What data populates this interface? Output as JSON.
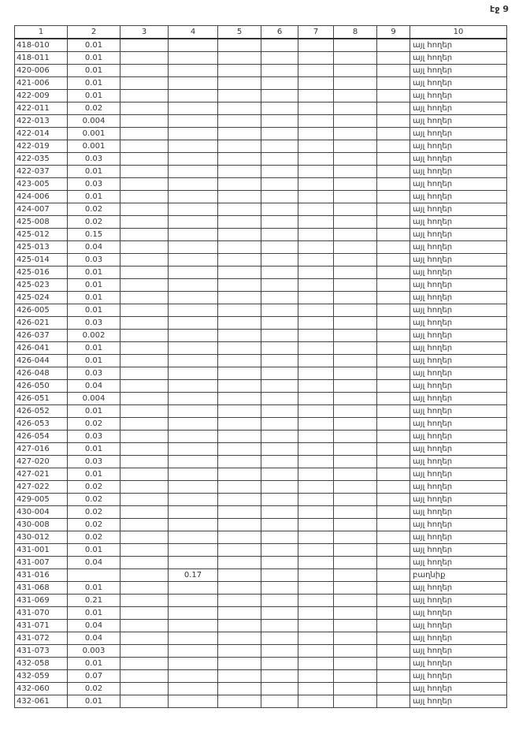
{
  "page_label": "էջ 9",
  "headers": [
    "1",
    "2",
    "3",
    "4",
    "5",
    "6",
    "7",
    "8",
    "9",
    "10"
  ],
  "rows": [
    [
      "418-010",
      "0.01",
      "",
      "",
      "",
      "",
      "",
      "",
      "",
      "այլ հողեր"
    ],
    [
      "418-011",
      "0.01",
      "",
      "",
      "",
      "",
      "",
      "",
      "",
      "այլ հողեր"
    ],
    [
      "420-006",
      "0.01",
      "",
      "",
      "",
      "",
      "",
      "",
      "",
      "այլ հողեր"
    ],
    [
      "421-006",
      "0.01",
      "",
      "",
      "",
      "",
      "",
      "",
      "",
      "այլ հողեր"
    ],
    [
      "422-009",
      "0.01",
      "",
      "",
      "",
      "",
      "",
      "",
      "",
      "այլ հողեր"
    ],
    [
      "422-011",
      "0.02",
      "",
      "",
      "",
      "",
      "",
      "",
      "",
      "այլ հողեր"
    ],
    [
      "422-013",
      "0.004",
      "",
      "",
      "",
      "",
      "",
      "",
      "",
      "այլ հողեր"
    ],
    [
      "422-014",
      "0.001",
      "",
      "",
      "",
      "",
      "",
      "",
      "",
      "այլ հողեր"
    ],
    [
      "422-019",
      "0.001",
      "",
      "",
      "",
      "",
      "",
      "",
      "",
      "այլ հողեր"
    ],
    [
      "422-035",
      "0.03",
      "",
      "",
      "",
      "",
      "",
      "",
      "",
      "այլ հողեր"
    ],
    [
      "422-037",
      "0.01",
      "",
      "",
      "",
      "",
      "",
      "",
      "",
      "այլ հողեր"
    ],
    [
      "423-005",
      "0.03",
      "",
      "",
      "",
      "",
      "",
      "",
      "",
      "այլ հողեր"
    ],
    [
      "424-006",
      "0.01",
      "",
      "",
      "",
      "",
      "",
      "",
      "",
      "այլ հողեր"
    ],
    [
      "424-007",
      "0.02",
      "",
      "",
      "",
      "",
      "",
      "",
      "",
      "այլ հողեր"
    ],
    [
      "425-008",
      "0.02",
      "",
      "",
      "",
      "",
      "",
      "",
      "",
      "այլ հողեր"
    ],
    [
      "425-012",
      "0.15",
      "",
      "",
      "",
      "",
      "",
      "",
      "",
      "այլ հողեր"
    ],
    [
      "425-013",
      "0.04",
      "",
      "",
      "",
      "",
      "",
      "",
      "",
      "այլ հողեր"
    ],
    [
      "425-014",
      "0.03",
      "",
      "",
      "",
      "",
      "",
      "",
      "",
      "այլ հողեր"
    ],
    [
      "425-016",
      "0.01",
      "",
      "",
      "",
      "",
      "",
      "",
      "",
      "այլ հողեր"
    ],
    [
      "425-023",
      "0.01",
      "",
      "",
      "",
      "",
      "",
      "",
      "",
      "այլ հողեր"
    ],
    [
      "425-024",
      "0.01",
      "",
      "",
      "",
      "",
      "",
      "",
      "",
      "այլ հողեր"
    ],
    [
      "426-005",
      "0.01",
      "",
      "",
      "",
      "",
      "",
      "",
      "",
      "այլ հողեր"
    ],
    [
      "426-021",
      "0.03",
      "",
      "",
      "",
      "",
      "",
      "",
      "",
      "այլ հողեր"
    ],
    [
      "426-037",
      "0.002",
      "",
      "",
      "",
      "",
      "",
      "",
      "",
      "այլ հողեր"
    ],
    [
      "426-041",
      "0.01",
      "",
      "",
      "",
      "",
      "",
      "",
      "",
      "այլ հողեր"
    ],
    [
      "426-044",
      "0.01",
      "",
      "",
      "",
      "",
      "",
      "",
      "",
      "այլ հողեր"
    ],
    [
      "426-048",
      "0.03",
      "",
      "",
      "",
      "",
      "",
      "",
      "",
      "այլ հողեր"
    ],
    [
      "426-050",
      "0.04",
      "",
      "",
      "",
      "",
      "",
      "",
      "",
      "այլ հողեր"
    ],
    [
      "426-051",
      "0.004",
      "",
      "",
      "",
      "",
      "",
      "",
      "",
      "այլ հողեր"
    ],
    [
      "426-052",
      "0.01",
      "",
      "",
      "",
      "",
      "",
      "",
      "",
      "այլ հողեր"
    ],
    [
      "426-053",
      "0.02",
      "",
      "",
      "",
      "",
      "",
      "",
      "",
      "այլ հողեր"
    ],
    [
      "426-054",
      "0.03",
      "",
      "",
      "",
      "",
      "",
      "",
      "",
      "այլ հողեր"
    ],
    [
      "427-016",
      "0.01",
      "",
      "",
      "",
      "",
      "",
      "",
      "",
      "այլ հողեր"
    ],
    [
      "427-020",
      "0.03",
      "",
      "",
      "",
      "",
      "",
      "",
      "",
      "այլ հողեր"
    ],
    [
      "427-021",
      "0.01",
      "",
      "",
      "",
      "",
      "",
      "",
      "",
      "այլ հողեր"
    ],
    [
      "427-022",
      "0.02",
      "",
      "",
      "",
      "",
      "",
      "",
      "",
      "այլ հողեր"
    ],
    [
      "429-005",
      "0.02",
      "",
      "",
      "",
      "",
      "",
      "",
      "",
      "այլ հողեր"
    ],
    [
      "430-004",
      "0.02",
      "",
      "",
      "",
      "",
      "",
      "",
      "",
      "այլ հողեր"
    ],
    [
      "430-008",
      "0.02",
      "",
      "",
      "",
      "",
      "",
      "",
      "",
      "այլ հողեր"
    ],
    [
      "430-012",
      "0.02",
      "",
      "",
      "",
      "",
      "",
      "",
      "",
      "այլ հողեր"
    ],
    [
      "431-001",
      "0.01",
      "",
      "",
      "",
      "",
      "",
      "",
      "",
      "այլ հողեր"
    ],
    [
      "431-007",
      "0.04",
      "",
      "",
      "",
      "",
      "",
      "",
      "",
      "այլ հողեր"
    ],
    [
      "431-016",
      "",
      "",
      "0.17",
      "",
      "",
      "",
      "",
      "",
      "բաղնիք"
    ],
    [
      "431-068",
      "0.01",
      "",
      "",
      "",
      "",
      "",
      "",
      "",
      "այլ հողեր"
    ],
    [
      "431-069",
      "0.21",
      "",
      "",
      "",
      "",
      "",
      "",
      "",
      "այլ հողեր"
    ],
    [
      "431-070",
      "0.01",
      "",
      "",
      "",
      "",
      "",
      "",
      "",
      "այլ հողեր"
    ],
    [
      "431-071",
      "0.04",
      "",
      "",
      "",
      "",
      "",
      "",
      "",
      "այլ հողեր"
    ],
    [
      "431-072",
      "0.04",
      "",
      "",
      "",
      "",
      "",
      "",
      "",
      "այլ հողեր"
    ],
    [
      "431-073",
      "0.003",
      "",
      "",
      "",
      "",
      "",
      "",
      "",
      "այլ հողեր"
    ],
    [
      "432-058",
      "0.01",
      "",
      "",
      "",
      "",
      "",
      "",
      "",
      "այլ հողեր"
    ],
    [
      "432-059",
      "0.07",
      "",
      "",
      "",
      "",
      "",
      "",
      "",
      "այլ հողեր"
    ],
    [
      "432-060",
      "0.02",
      "",
      "",
      "",
      "",
      "",
      "",
      "",
      "այլ հողեր"
    ],
    [
      "432-061",
      "0.01",
      "",
      "",
      "",
      "",
      "",
      "",
      "",
      "այլ հողեր"
    ]
  ]
}
